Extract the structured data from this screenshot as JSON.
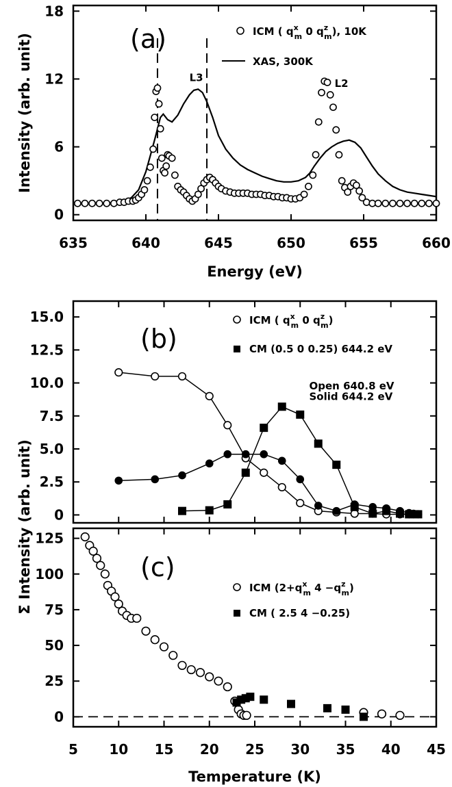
{
  "chart_data": [
    {
      "type": "scatter",
      "panel_label": "(a)",
      "xlabel": "Energy (eV)",
      "ylabel": "Intensity (arb. unit)",
      "xlim": [
        635,
        660
      ],
      "ylim": [
        -0.5,
        18.5
      ],
      "xticks": [
        635,
        640,
        645,
        650,
        655,
        660
      ],
      "yticks": [
        0,
        6,
        12,
        18
      ],
      "annotations": [
        {
          "text": "L3",
          "x": 643.0,
          "y": 11.8
        },
        {
          "text": "L2",
          "x": 653.0,
          "y": 11.3
        }
      ],
      "vlines": [
        640.8,
        644.2
      ],
      "legend_position": "top-right",
      "series": [
        {
          "name": "ICM ( q_m^x  0 q_m^z), 10K",
          "legend_main": "ICM ( q",
          "legend_sup1": "x",
          "legend_sub1": "m",
          "legend_mid": "  0 q",
          "legend_sup2": "z",
          "legend_sub2": "m",
          "legend_tail": "), 10K",
          "marker": "open-circle",
          "x": [
            635.3,
            635.8,
            636.3,
            636.8,
            637.3,
            637.8,
            638.2,
            638.5,
            638.8,
            639.1,
            639.3,
            639.5,
            639.7,
            639.9,
            640.1,
            640.3,
            640.5,
            640.6,
            640.7,
            640.8,
            640.9,
            641.0,
            641.1,
            641.2,
            641.3,
            641.4,
            641.5,
            641.6,
            641.8,
            642.0,
            642.2,
            642.4,
            642.6,
            642.8,
            643.0,
            643.2,
            643.4,
            643.6,
            643.8,
            644.0,
            644.2,
            644.4,
            644.6,
            644.8,
            645.0,
            645.2,
            645.5,
            645.8,
            646.1,
            646.4,
            646.7,
            647.0,
            647.3,
            647.6,
            647.9,
            648.2,
            648.5,
            648.8,
            649.1,
            649.4,
            649.7,
            650.0,
            650.3,
            650.6,
            650.9,
            651.2,
            651.5,
            651.7,
            651.9,
            652.1,
            652.3,
            652.5,
            652.7,
            652.9,
            653.1,
            653.3,
            653.5,
            653.7,
            653.9,
            654.1,
            654.3,
            654.5,
            654.7,
            654.9,
            655.2,
            655.6,
            656.0,
            656.5,
            657.0,
            657.5,
            658.0,
            658.5,
            659.0,
            659.5,
            660.0
          ],
          "y": [
            1.0,
            1.0,
            1.0,
            1.0,
            1.0,
            1.0,
            1.1,
            1.1,
            1.2,
            1.2,
            1.3,
            1.5,
            1.8,
            2.2,
            3.0,
            4.2,
            5.8,
            8.6,
            10.9,
            11.2,
            9.8,
            7.6,
            5.0,
            3.9,
            3.7,
            4.3,
            5.3,
            5.2,
            5.0,
            3.5,
            2.5,
            2.2,
            2.0,
            1.7,
            1.4,
            1.2,
            1.4,
            1.8,
            2.3,
            2.8,
            3.1,
            3.3,
            3.1,
            2.8,
            2.5,
            2.3,
            2.1,
            2.0,
            1.9,
            1.9,
            1.9,
            1.9,
            1.8,
            1.8,
            1.8,
            1.7,
            1.7,
            1.6,
            1.6,
            1.5,
            1.5,
            1.4,
            1.4,
            1.5,
            1.8,
            2.5,
            3.5,
            5.3,
            8.2,
            10.8,
            11.8,
            11.7,
            10.6,
            9.5,
            7.5,
            5.3,
            3.0,
            2.4,
            2.0,
            2.5,
            2.8,
            2.6,
            2.1,
            1.5,
            1.1,
            1.0,
            1.0,
            1.0,
            1.0,
            1.0,
            1.0,
            1.0,
            1.0,
            1.0,
            1.0
          ]
        },
        {
          "name": "XAS, 300K",
          "marker": "line",
          "x": [
            635,
            636,
            637,
            638,
            638.5,
            639,
            639.5,
            640,
            640.3,
            640.6,
            640.8,
            641.0,
            641.2,
            641.5,
            641.8,
            642.2,
            642.6,
            643.0,
            643.3,
            643.6,
            643.9,
            644.2,
            644.6,
            645.0,
            645.5,
            646,
            646.5,
            647,
            647.5,
            648,
            648.5,
            649,
            649.5,
            650,
            650.5,
            651,
            651.3,
            651.6,
            652,
            652.4,
            652.8,
            653.2,
            653.6,
            654.0,
            654.4,
            654.8,
            655.2,
            655.6,
            656,
            656.5,
            657,
            657.5,
            658,
            658.5,
            659,
            659.5,
            660
          ],
          "y": [
            1.0,
            1.0,
            1.0,
            1.05,
            1.2,
            1.5,
            2.2,
            3.8,
            5.2,
            6.6,
            7.6,
            8.6,
            8.9,
            8.4,
            8.2,
            8.8,
            9.8,
            10.6,
            11.0,
            11.1,
            10.8,
            10.0,
            8.6,
            7.0,
            5.8,
            5.0,
            4.4,
            4.0,
            3.7,
            3.4,
            3.2,
            3.0,
            2.9,
            2.9,
            3.0,
            3.3,
            3.7,
            4.3,
            5.0,
            5.6,
            6.0,
            6.3,
            6.5,
            6.6,
            6.4,
            5.9,
            5.1,
            4.3,
            3.6,
            3.0,
            2.5,
            2.2,
            2.0,
            1.9,
            1.8,
            1.7,
            1.6
          ]
        }
      ]
    },
    {
      "type": "line",
      "panel_label": "(b)",
      "xlabel": "",
      "ylabel": "Σ Intensity (arb. unit)",
      "xlim": [
        5,
        45
      ],
      "ylim": [
        -0.6,
        16.2
      ],
      "yticks": [
        0,
        2.5,
        5.0,
        7.5,
        10.0,
        12.5,
        15.0
      ],
      "ytick_labels": [
        "0",
        "2.5",
        "5.0",
        "7.5",
        "10.0",
        "12.5",
        "15.0"
      ],
      "annotations": [
        {
          "text": "Open  640.8 eV",
          "x": 31.0,
          "y": 9.5
        },
        {
          "text": "Solid  644.2 eV",
          "x": 31.0,
          "y": 8.7
        }
      ],
      "legend_position": "top-right",
      "series": [
        {
          "name": "ICM ( q_m^x  0 q_m^z) open",
          "legend_main": "ICM ( q",
          "legend_sup1": "x",
          "legend_sub1": "m",
          "legend_mid": "  0 q",
          "legend_sup2": "z",
          "legend_sub2": "m",
          "legend_tail": ")",
          "marker": "open-circle-line",
          "x": [
            10,
            14,
            17,
            20,
            22,
            24,
            26,
            28,
            30,
            32,
            34,
            36,
            38,
            39.5,
            41,
            42,
            42.5,
            43
          ],
          "y": [
            10.8,
            10.5,
            10.5,
            9.0,
            6.8,
            4.3,
            3.2,
            2.1,
            0.9,
            0.3,
            0.2,
            0.1,
            0.1,
            0.05,
            0.05,
            0.05,
            0.05,
            0.05
          ]
        },
        {
          "name": "ICM ( q_m^x  0 q_m^z) solid",
          "marker": "filled-circle-line",
          "x": [
            10,
            14,
            17,
            20,
            22,
            24,
            26,
            28,
            30,
            32,
            34,
            36,
            38,
            39.5,
            41,
            42,
            42.5,
            43
          ],
          "y": [
            2.6,
            2.7,
            3.0,
            3.9,
            4.6,
            4.6,
            4.6,
            4.1,
            2.7,
            0.7,
            0.3,
            0.8,
            0.6,
            0.5,
            0.3,
            0.15,
            0.1,
            0.05
          ]
        },
        {
          "name": "CM (0.5 0 0.25) 644.2 eV",
          "legend_main": "CM (0.5 0 0.25) 644.2 eV",
          "marker": "filled-square-line",
          "x": [
            17,
            20,
            22,
            24,
            26,
            28,
            30,
            32,
            34,
            36,
            38,
            39.5,
            41,
            42,
            42.5,
            43
          ],
          "y": [
            0.3,
            0.35,
            0.8,
            3.2,
            6.6,
            8.2,
            7.6,
            5.4,
            3.8,
            0.6,
            0.1,
            0.3,
            0.1,
            0.05,
            0.05,
            0.05
          ]
        }
      ]
    },
    {
      "type": "scatter",
      "panel_label": "(c)",
      "xlabel": "Temperature (K)",
      "ylabel": "",
      "xlim": [
        5,
        45
      ],
      "ylim": [
        -7,
        132
      ],
      "xticks": [
        5,
        10,
        15,
        20,
        25,
        30,
        35,
        40,
        45
      ],
      "yticks": [
        0,
        25,
        50,
        75,
        100,
        125
      ],
      "hline": 0,
      "legend_position": "top-right",
      "series": [
        {
          "name": "ICM (2+q_m^x 4 -q_m^z)",
          "legend_main": "ICM (2+q",
          "legend_sup1": "x",
          "legend_sub1": "m",
          "legend_mid": " 4 −q",
          "legend_sup2": "z",
          "legend_sub2": "m",
          "legend_tail": ")",
          "marker": "open-circle",
          "x": [
            6.3,
            6.8,
            7.2,
            7.6,
            8.0,
            8.5,
            8.8,
            9.2,
            9.6,
            10.0,
            10.4,
            10.9,
            11.4,
            12.0,
            13.0,
            14.0,
            15.0,
            16.0,
            17.0,
            18.0,
            19.0,
            20.0,
            21.0,
            22.0,
            22.8,
            23.2,
            23.5,
            23.8,
            24.1,
            37.0,
            39.0,
            41.0
          ],
          "y": [
            126,
            120,
            116,
            111,
            106,
            100,
            92,
            88,
            84,
            79,
            74,
            71,
            69,
            69,
            60,
            54,
            49,
            43,
            36,
            33,
            31,
            28,
            25,
            21,
            11,
            5,
            2,
            1,
            1,
            3,
            2,
            1
          ]
        },
        {
          "name": "CM ( 2.5  4 -0.25)",
          "legend_main": "CM ( 2.5  4 −0.25)",
          "marker": "filled-square",
          "x": [
            23.0,
            23.5,
            24.0,
            24.5,
            26.0,
            29.0,
            33.0,
            35.0,
            37.0
          ],
          "y": [
            10,
            12,
            13,
            14,
            12,
            9,
            6,
            5,
            0
          ]
        }
      ]
    }
  ]
}
